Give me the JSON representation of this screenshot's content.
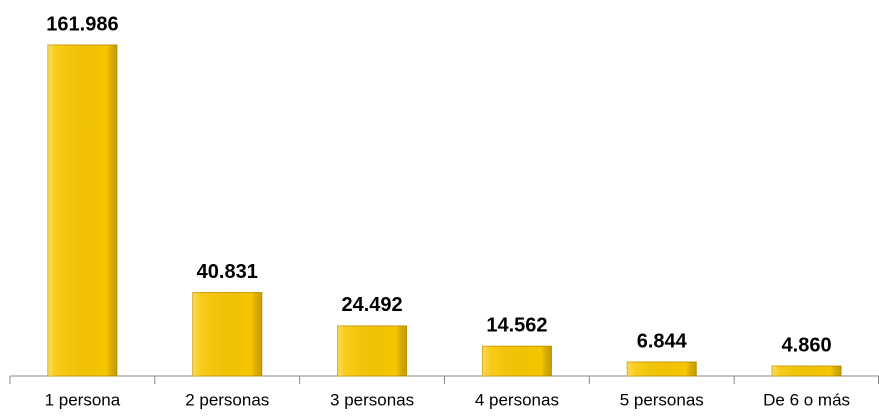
{
  "chart_data": {
    "type": "bar",
    "categories": [
      "1 persona",
      "2 personas",
      "3 personas",
      "4 personas",
      "5 personas",
      "De 6 o más"
    ],
    "values": [
      161986,
      40831,
      24492,
      14562,
      6844,
      4860
    ],
    "value_labels": [
      "161.986",
      "40.831",
      "24.492",
      "14.562",
      "6.844",
      "4.860"
    ],
    "color": "#f7c600"
  }
}
